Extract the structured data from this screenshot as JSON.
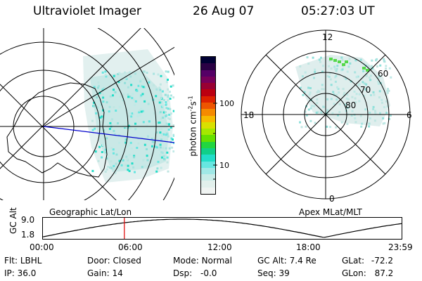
{
  "header": {
    "instrument": "Ultraviolet Imager",
    "date": "26 Aug 07",
    "time": "05:27:03 UT"
  },
  "colorbar": {
    "unit_label": "photon cm",
    "unit_exp1": "-2",
    "unit_mid": "s",
    "unit_exp2": "-1",
    "ticks": [
      "100",
      "10"
    ],
    "colors": [
      "#000033",
      "#2a0044",
      "#550066",
      "#77005a",
      "#990033",
      "#bb0011",
      "#dd2200",
      "#ee5500",
      "#f58a00",
      "#f6bb00",
      "#d9e000",
      "#a5e800",
      "#66e000",
      "#22d640",
      "#11cf88",
      "#22ddc8",
      "#66e6e0",
      "#a0e8e6",
      "#c8ece8",
      "#e2f0ec",
      "#f0f4f2"
    ]
  },
  "left_panel": {
    "caption": "Geographic Lat/Lon"
  },
  "right_panel": {
    "caption": "Apex MLat/MLT",
    "mlt_labels": {
      "top": "12",
      "left": "18",
      "right": "6",
      "bottom": "0"
    },
    "lat_labels": [
      "60",
      "70",
      "80"
    ]
  },
  "altitude_plot": {
    "ylabel": "GC Alt",
    "y_ticks": [
      "9.0",
      "1.8"
    ],
    "x_ticks": [
      "00:00",
      "06:00",
      "12:00",
      "18:00",
      "23:59"
    ],
    "marker_time": "05:27"
  },
  "status": {
    "flt_label": "Flt:",
    "flt_value": "LBHL",
    "ip_label": "IP:",
    "ip_value": "36.0",
    "door_label": "Door:",
    "door_value": "Closed",
    "gain_label": "Gain:",
    "gain_value": "14",
    "mode_label": "Mode:",
    "mode_value": "Normal",
    "dsp_label": "Dsp:",
    "dsp_value": "-0.0",
    "gcalt_label": "GC Alt:",
    "gcalt_value": "7.4 Re",
    "seq_label": "Seq:",
    "seq_value": "39",
    "glat_label": "GLat:",
    "glat_value": "-72.2",
    "glon_label": "GLon:",
    "glon_value": "87.2"
  }
}
